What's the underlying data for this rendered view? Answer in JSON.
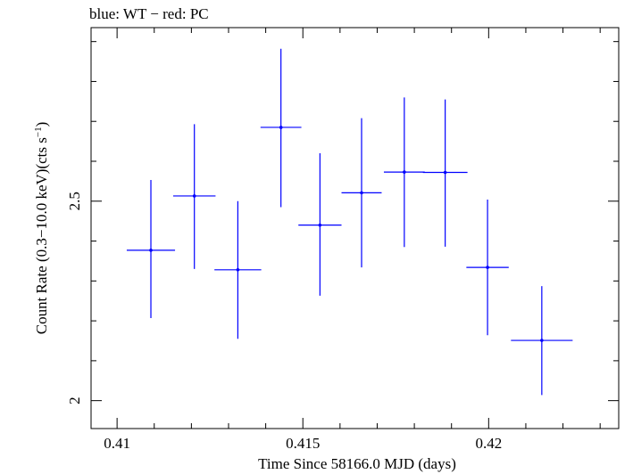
{
  "chart_data": {
    "type": "scatter",
    "title": "blue: WT − red: PC",
    "xlabel": "Time Since 58166.0 MJD (days)",
    "ylabel_main": "Count Rate (0.3−10.0 keV)(cts s",
    "ylabel_sup": "−1",
    "ylabel_end": ")",
    "xlim": [
      0.4093,
      0.4235
    ],
    "ylim": [
      1.93,
      2.935
    ],
    "xticks": [
      0.41,
      0.415,
      0.42
    ],
    "xtick_labels": [
      "0.41",
      "0.415",
      "0.42"
    ],
    "yticks": [
      2,
      2.5
    ],
    "ytick_labels": [
      "2",
      "2.5"
    ],
    "grid": false,
    "series": [
      {
        "name": "WT",
        "color": "#0000ff",
        "points": [
          {
            "x": 0.41091,
            "xerr": 0.00065,
            "y": 2.377,
            "yerr_lo": 0.17,
            "yerr_hi": 0.176
          },
          {
            "x": 0.41208,
            "xerr": 0.00057,
            "y": 2.513,
            "yerr_lo": 0.183,
            "yerr_hi": 0.18
          },
          {
            "x": 0.41325,
            "xerr": 0.00063,
            "y": 2.328,
            "yerr_lo": 0.173,
            "yerr_hi": 0.172
          },
          {
            "x": 0.41441,
            "xerr": 0.00055,
            "y": 2.685,
            "yerr_lo": 0.2,
            "yerr_hi": 0.197
          },
          {
            "x": 0.41546,
            "xerr": 0.00058,
            "y": 2.44,
            "yerr_lo": 0.177,
            "yerr_hi": 0.18
          },
          {
            "x": 0.41658,
            "xerr": 0.00054,
            "y": 2.521,
            "yerr_lo": 0.187,
            "yerr_hi": 0.187
          },
          {
            "x": 0.41773,
            "xerr": 0.00055,
            "y": 2.573,
            "yerr_lo": 0.188,
            "yerr_hi": 0.187
          },
          {
            "x": 0.41883,
            "xerr": 0.0006,
            "y": 2.572,
            "yerr_lo": 0.186,
            "yerr_hi": 0.183
          },
          {
            "x": 0.41997,
            "xerr": 0.00057,
            "y": 2.334,
            "yerr_lo": 0.17,
            "yerr_hi": 0.17
          },
          {
            "x": 0.42143,
            "xerr": 0.00083,
            "y": 2.151,
            "yerr_lo": 0.137,
            "yerr_hi": 0.136
          }
        ]
      }
    ]
  }
}
